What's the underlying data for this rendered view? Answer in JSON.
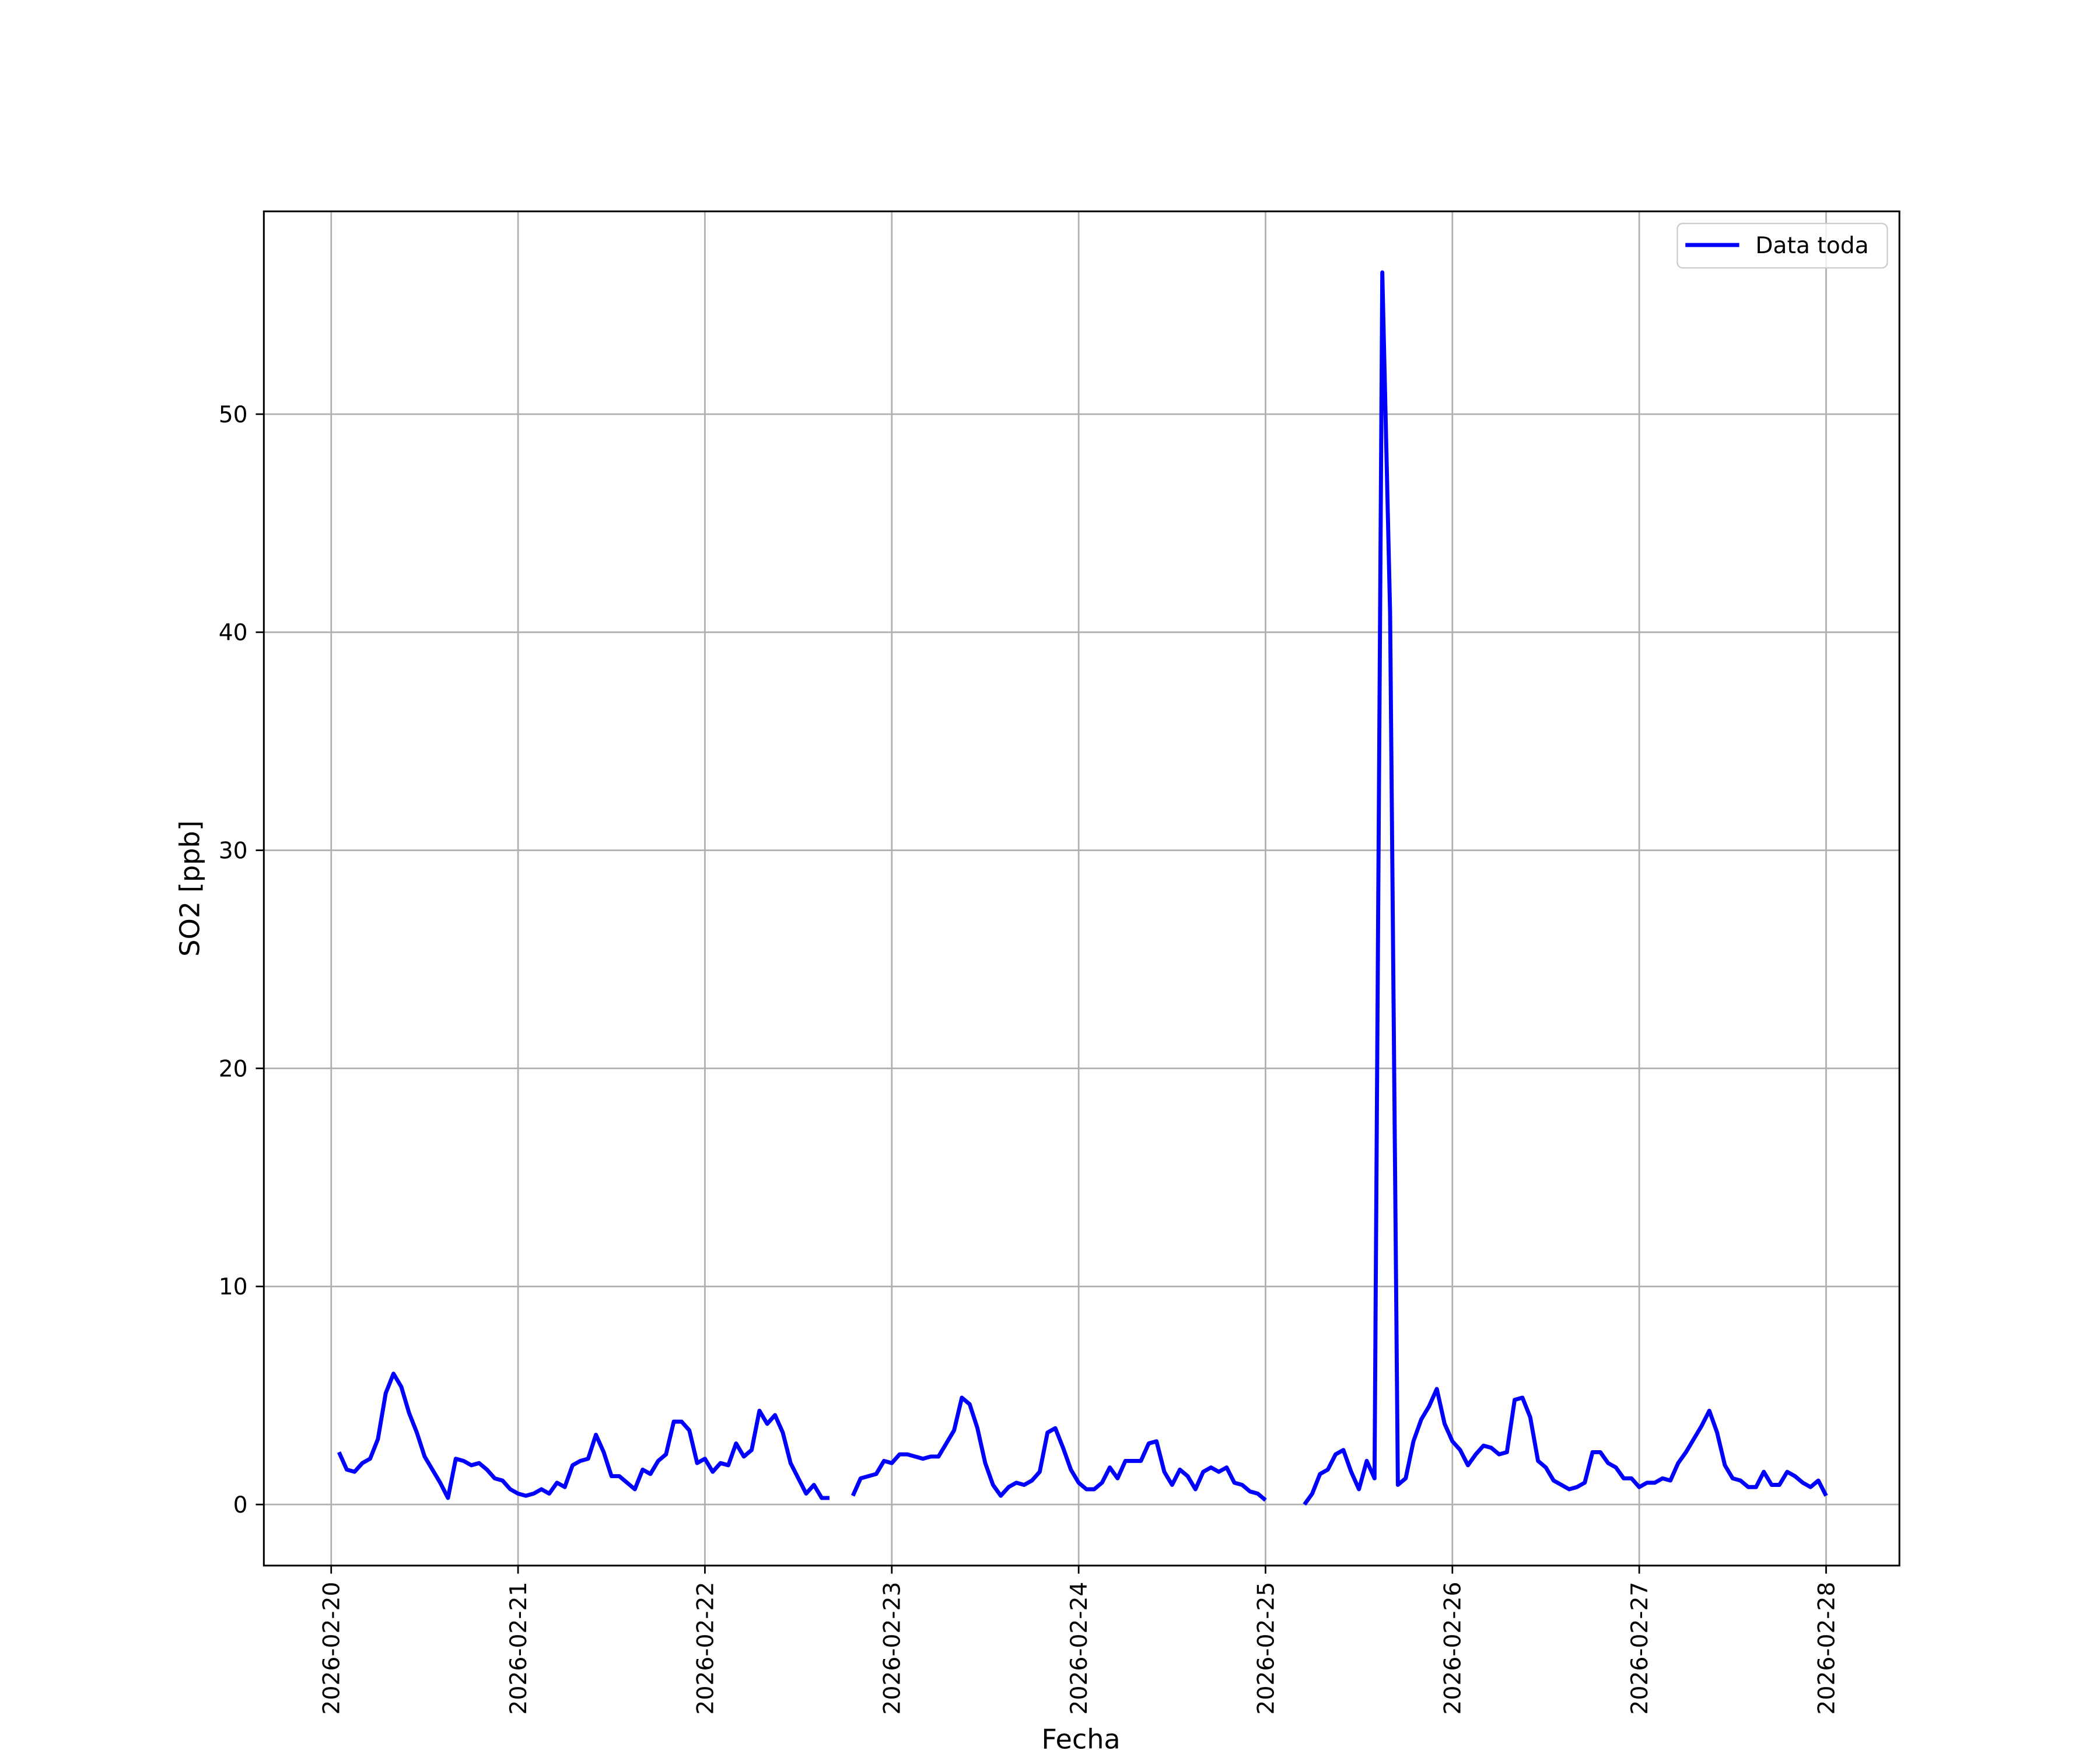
{
  "chart_data": {
    "type": "line",
    "xlabel": "Fecha",
    "ylabel": "SO2 [ppb]",
    "x": [
      "2026-02-20T01:00",
      "2026-02-20T02:00",
      "2026-02-20T03:00",
      "2026-02-20T04:00",
      "2026-02-20T05:00",
      "2026-02-20T06:00",
      "2026-02-20T07:00",
      "2026-02-20T08:00",
      "2026-02-20T09:00",
      "2026-02-20T10:00",
      "2026-02-20T11:00",
      "2026-02-20T12:00",
      "2026-02-20T13:00",
      "2026-02-20T14:00",
      "2026-02-20T15:00",
      "2026-02-20T16:00",
      "2026-02-20T17:00",
      "2026-02-20T18:00",
      "2026-02-20T19:00",
      "2026-02-20T20:00",
      "2026-02-20T21:00",
      "2026-02-20T22:00",
      "2026-02-20T23:00",
      "2026-02-21T00:00",
      "2026-02-21T01:00",
      "2026-02-21T02:00",
      "2026-02-21T03:00",
      "2026-02-21T04:00",
      "2026-02-21T05:00",
      "2026-02-21T06:00",
      "2026-02-21T07:00",
      "2026-02-21T08:00",
      "2026-02-21T09:00",
      "2026-02-21T10:00",
      "2026-02-21T11:00",
      "2026-02-21T12:00",
      "2026-02-21T13:00",
      "2026-02-21T14:00",
      "2026-02-21T15:00",
      "2026-02-21T16:00",
      "2026-02-21T17:00",
      "2026-02-21T18:00",
      "2026-02-21T19:00",
      "2026-02-21T20:00",
      "2026-02-21T21:00",
      "2026-02-21T22:00",
      "2026-02-21T23:00",
      "2026-02-22T00:00",
      "2026-02-22T01:00",
      "2026-02-22T02:00",
      "2026-02-22T03:00",
      "2026-02-22T04:00",
      "2026-02-22T05:00",
      "2026-02-22T06:00",
      "2026-02-22T07:00",
      "2026-02-22T08:00",
      "2026-02-22T09:00",
      "2026-02-22T10:00",
      "2026-02-22T11:00",
      "2026-02-22T12:00",
      "2026-02-22T13:00",
      "2026-02-22T14:00",
      "2026-02-22T15:00",
      "2026-02-22T16:00",
      "2026-02-22T17:00",
      "2026-02-22T18:00",
      "2026-02-22T19:00",
      "2026-02-22T20:00",
      "2026-02-22T21:00",
      "2026-02-22T22:00",
      "2026-02-22T23:00",
      "2026-02-23T00:00",
      "2026-02-23T01:00",
      "2026-02-23T02:00",
      "2026-02-23T03:00",
      "2026-02-23T04:00",
      "2026-02-23T05:00",
      "2026-02-23T06:00",
      "2026-02-23T07:00",
      "2026-02-23T08:00",
      "2026-02-23T09:00",
      "2026-02-23T10:00",
      "2026-02-23T11:00",
      "2026-02-23T12:00",
      "2026-02-23T13:00",
      "2026-02-23T14:00",
      "2026-02-23T15:00",
      "2026-02-23T16:00",
      "2026-02-23T17:00",
      "2026-02-23T18:00",
      "2026-02-23T19:00",
      "2026-02-23T20:00",
      "2026-02-23T21:00",
      "2026-02-23T22:00",
      "2026-02-23T23:00",
      "2026-02-24T00:00",
      "2026-02-24T01:00",
      "2026-02-24T02:00",
      "2026-02-24T03:00",
      "2026-02-24T04:00",
      "2026-02-24T05:00",
      "2026-02-24T06:00",
      "2026-02-24T07:00",
      "2026-02-24T08:00",
      "2026-02-24T09:00",
      "2026-02-24T10:00",
      "2026-02-24T11:00",
      "2026-02-24T12:00",
      "2026-02-24T13:00",
      "2026-02-24T14:00",
      "2026-02-24T15:00",
      "2026-02-24T16:00",
      "2026-02-24T17:00",
      "2026-02-24T18:00",
      "2026-02-24T19:00",
      "2026-02-24T20:00",
      "2026-02-24T21:00",
      "2026-02-24T22:00",
      "2026-02-24T23:00",
      "2026-02-25T00:00",
      "2026-02-25T01:00",
      "2026-02-25T02:00",
      "2026-02-25T03:00",
      "2026-02-25T04:00",
      "2026-02-25T05:00",
      "2026-02-25T06:00",
      "2026-02-25T07:00",
      "2026-02-25T08:00",
      "2026-02-25T09:00",
      "2026-02-25T10:00",
      "2026-02-25T11:00",
      "2026-02-25T12:00",
      "2026-02-25T13:00",
      "2026-02-25T14:00",
      "2026-02-25T15:00",
      "2026-02-25T16:00",
      "2026-02-25T17:00",
      "2026-02-25T18:00",
      "2026-02-25T19:00",
      "2026-02-25T20:00",
      "2026-02-25T21:00",
      "2026-02-25T22:00",
      "2026-02-25T23:00",
      "2026-02-26T00:00",
      "2026-02-26T01:00",
      "2026-02-26T02:00",
      "2026-02-26T03:00",
      "2026-02-26T04:00",
      "2026-02-26T05:00",
      "2026-02-26T06:00",
      "2026-02-26T07:00",
      "2026-02-26T08:00",
      "2026-02-26T09:00",
      "2026-02-26T10:00",
      "2026-02-26T11:00",
      "2026-02-26T12:00",
      "2026-02-26T13:00",
      "2026-02-26T14:00",
      "2026-02-26T15:00",
      "2026-02-26T16:00",
      "2026-02-26T17:00",
      "2026-02-26T18:00",
      "2026-02-26T19:00",
      "2026-02-26T20:00",
      "2026-02-26T21:00",
      "2026-02-26T22:00",
      "2026-02-26T23:00",
      "2026-02-27T00:00",
      "2026-02-27T01:00",
      "2026-02-27T02:00",
      "2026-02-27T03:00",
      "2026-02-27T04:00",
      "2026-02-27T05:00",
      "2026-02-27T06:00",
      "2026-02-27T07:00",
      "2026-02-27T08:00",
      "2026-02-27T09:00",
      "2026-02-27T10:00",
      "2026-02-27T11:00",
      "2026-02-27T12:00",
      "2026-02-27T13:00",
      "2026-02-27T14:00",
      "2026-02-27T15:00",
      "2026-02-27T16:00",
      "2026-02-27T17:00",
      "2026-02-27T18:00",
      "2026-02-27T19:00",
      "2026-02-27T20:00",
      "2026-02-27T21:00",
      "2026-02-27T22:00",
      "2026-02-27T23:00",
      "2026-02-28T00:00"
    ],
    "series": [
      {
        "name": "Data toda",
        "color": "#0000ff",
        "values": [
          2.4,
          1.6,
          1.5,
          1.9,
          2.1,
          3.0,
          5.1,
          6.0,
          5.4,
          4.2,
          3.3,
          2.2,
          1.6,
          1.0,
          0.3,
          2.1,
          2.0,
          1.8,
          1.9,
          1.6,
          1.2,
          1.1,
          0.7,
          0.5,
          0.4,
          0.5,
          0.7,
          0.5,
          1.0,
          0.8,
          1.8,
          2.0,
          2.1,
          3.2,
          2.4,
          1.3,
          1.3,
          1.0,
          0.7,
          1.6,
          1.4,
          2.0,
          2.3,
          3.8,
          3.8,
          3.4,
          1.9,
          2.1,
          1.5,
          1.9,
          1.8,
          2.8,
          2.2,
          2.5,
          4.3,
          3.7,
          4.1,
          3.3,
          1.9,
          1.2,
          0.5,
          0.9,
          0.3,
          0.3,
          null,
          null,
          0.4,
          1.2,
          1.3,
          1.4,
          2.0,
          1.9,
          2.3,
          2.3,
          2.2,
          2.1,
          2.2,
          2.2,
          2.8,
          3.4,
          4.9,
          4.6,
          3.5,
          1.9,
          0.9,
          0.4,
          0.8,
          1.0,
          0.9,
          1.1,
          1.5,
          3.3,
          3.5,
          2.6,
          1.6,
          1.0,
          0.7,
          0.7,
          1.0,
          1.7,
          1.2,
          2.0,
          2.0,
          2.0,
          2.8,
          2.9,
          1.5,
          0.9,
          1.6,
          1.3,
          0.7,
          1.5,
          1.7,
          1.5,
          1.7,
          1.0,
          0.9,
          0.6,
          0.5,
          0.2,
          null,
          null,
          null,
          null,
          0.0,
          0.5,
          1.4,
          1.6,
          2.3,
          2.5,
          1.5,
          0.7,
          2.0,
          1.2,
          56.5,
          40.9,
          0.9,
          1.2,
          2.9,
          3.9,
          4.5,
          5.3,
          3.7,
          2.9,
          2.5,
          1.8,
          2.3,
          2.7,
          2.6,
          2.3,
          2.4,
          4.8,
          4.9,
          4.0,
          2.0,
          1.7,
          1.1,
          0.9,
          0.7,
          0.8,
          1.0,
          2.4,
          2.4,
          1.9,
          1.7,
          1.2,
          1.2,
          0.8,
          1.0,
          1.0,
          1.2,
          1.1,
          1.9,
          2.4,
          3.0,
          3.6,
          4.3,
          3.3,
          1.8,
          1.2,
          1.1,
          0.8,
          0.8,
          1.5,
          0.9,
          0.9,
          1.5,
          1.3,
          1.0,
          0.8,
          1.1,
          0.4
        ]
      }
    ],
    "xlim": [
      "2026-02-19T15:21",
      "2026-02-28T09:25"
    ],
    "xticks": [
      "2026-02-20",
      "2026-02-21",
      "2026-02-22",
      "2026-02-23",
      "2026-02-24",
      "2026-02-25",
      "2026-02-26",
      "2026-02-27",
      "2026-02-28"
    ],
    "ylim": [
      -2.8,
      59.3
    ],
    "yticks": [
      0,
      10,
      20,
      30,
      40,
      50
    ],
    "grid": true,
    "legend": "upper right"
  }
}
